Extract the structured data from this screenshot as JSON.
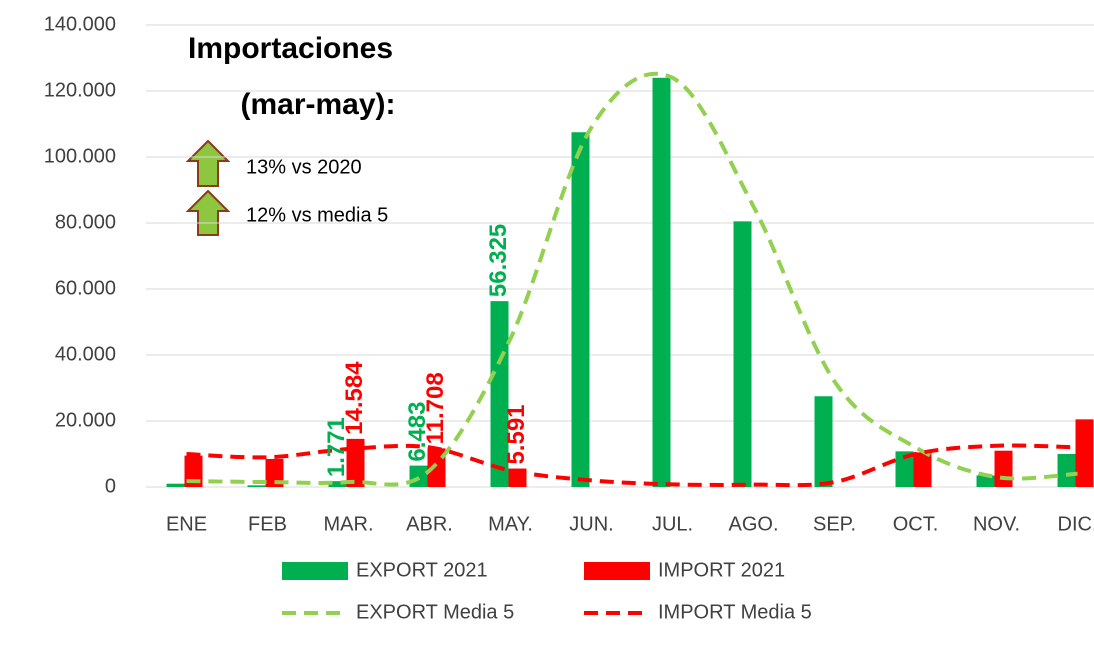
{
  "chart_data": {
    "type": "bar",
    "categories": [
      "ENE",
      "FEB",
      "MAR.",
      "ABR.",
      "MAY.",
      "JUN.",
      "JUL.",
      "AGO.",
      "SEP.",
      "OCT.",
      "NOV.",
      "DIC."
    ],
    "series": [
      {
        "name": "EXPORT 2021",
        "color": "#00b050",
        "values": [
          1000,
          500,
          1771,
          6483,
          56325,
          107500,
          124000,
          80500,
          27500,
          10800,
          3500,
          10000
        ],
        "value_labels": [
          null,
          null,
          "1.771",
          "6.483",
          "56.325",
          null,
          null,
          null,
          null,
          null,
          null,
          null
        ]
      },
      {
        "name": "IMPORT 2021",
        "color": "#ff0000",
        "values": [
          9500,
          8500,
          14584,
          11708,
          5591,
          0,
          0,
          0,
          0,
          10500,
          11000,
          20500
        ],
        "value_labels": [
          null,
          null,
          "14.584",
          "11.708",
          "5.591",
          null,
          null,
          null,
          null,
          null,
          null,
          null
        ]
      },
      {
        "name": "EXPORT Media 5",
        "type": "line",
        "dashed": true,
        "color": "#92d050",
        "values": [
          1800,
          1500,
          1500,
          5000,
          45000,
          109000,
          124000,
          85000,
          32000,
          12000,
          3000,
          4000
        ]
      },
      {
        "name": "IMPORT Media 5",
        "type": "line",
        "dashed": true,
        "color": "#ff0000",
        "values": [
          10000,
          9000,
          11500,
          12000,
          5000,
          2000,
          800,
          700,
          1500,
          10000,
          12500,
          12000
        ]
      }
    ],
    "ylim": [
      0,
      140000
    ],
    "yticks": [
      0,
      {
        "value": 20000,
        "label": "20.000"
      },
      {
        "value": 40000,
        "label": "40.000"
      },
      {
        "value": 60000,
        "label": "60.000"
      },
      {
        "value": 80000,
        "label": "80.000"
      },
      {
        "value": 100000,
        "label": "100.000"
      },
      {
        "value": 120000,
        "label": "120.000"
      },
      {
        "value": 140000,
        "label": "140.000"
      }
    ],
    "grid": true,
    "legend": "bottom",
    "annotations": [
      "Importaciones",
      "(mar-may):",
      "13% vs 2020",
      "12% vs media 5"
    ]
  }
}
